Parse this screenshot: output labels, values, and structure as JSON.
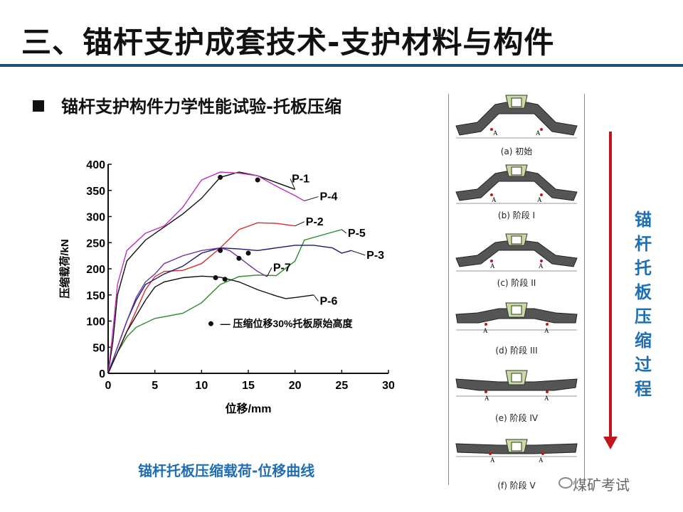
{
  "header": {
    "title": "三、锚杆支护成套技术-支护材料与构件"
  },
  "section": {
    "subtitle": "锚杆支护构件力学性能试验-托板压缩"
  },
  "caption": "锚杆托板压缩载荷-位移曲线",
  "process_label": "锚杆托板压缩过程",
  "watermark": "煤矿考试",
  "stages": [
    {
      "label": "(a) 初始"
    },
    {
      "label": "(b) 阶段 I"
    },
    {
      "label": "(c) 阶段 II"
    },
    {
      "label": "(d) 阶段 III"
    },
    {
      "label": "(e) 阶段 IV"
    },
    {
      "label": "(f) 阶段 V"
    }
  ],
  "stage_point_label": "A",
  "colors": {
    "accent_blue": "#1f6fb2",
    "arrow_red": "#c0151d",
    "title_rule": "#1f4e79"
  },
  "chart_data": {
    "type": "line",
    "xlabel": "位移/mm",
    "ylabel": "压缩载荷/kN",
    "xlim": [
      0,
      30
    ],
    "ylim": [
      0,
      400
    ],
    "xticks": [
      0,
      5,
      10,
      15,
      20,
      25,
      30
    ],
    "yticks": [
      0,
      50,
      100,
      150,
      200,
      250,
      300,
      350,
      400
    ],
    "annotation": "— 压缩位移30%托板原始高度",
    "series": [
      {
        "name": "P-1",
        "color": "#111111",
        "points": [
          [
            0,
            0
          ],
          [
            0.5,
            60
          ],
          [
            1,
            150
          ],
          [
            2,
            215
          ],
          [
            4,
            255
          ],
          [
            6,
            280
          ],
          [
            8,
            305
          ],
          [
            10,
            335
          ],
          [
            12,
            375
          ],
          [
            14,
            385
          ],
          [
            16,
            378
          ],
          [
            18,
            365
          ],
          [
            20,
            352
          ]
        ]
      },
      {
        "name": "P-4",
        "color": "#c030c0",
        "points": [
          [
            0,
            0
          ],
          [
            0.5,
            80
          ],
          [
            1,
            170
          ],
          [
            2,
            235
          ],
          [
            4,
            268
          ],
          [
            6,
            282
          ],
          [
            8,
            318
          ],
          [
            10,
            370
          ],
          [
            12,
            385
          ],
          [
            14,
            383
          ],
          [
            16,
            378
          ],
          [
            18,
            358
          ],
          [
            20,
            340
          ],
          [
            21,
            330
          ]
        ]
      },
      {
        "name": "P-2",
        "color": "#d43030",
        "points": [
          [
            0,
            0
          ],
          [
            1,
            40
          ],
          [
            2,
            80
          ],
          [
            3,
            120
          ],
          [
            4,
            160
          ],
          [
            5,
            185
          ],
          [
            6,
            195
          ],
          [
            8,
            197
          ],
          [
            10,
            210
          ],
          [
            12,
            240
          ],
          [
            14,
            275
          ],
          [
            16,
            288
          ],
          [
            18,
            287
          ],
          [
            20,
            282
          ]
        ]
      },
      {
        "name": "P-5",
        "color": "#2e8b2e",
        "points": [
          [
            0,
            0
          ],
          [
            1,
            40
          ],
          [
            2,
            70
          ],
          [
            3,
            88
          ],
          [
            5,
            105
          ],
          [
            8,
            115
          ],
          [
            10,
            135
          ],
          [
            12,
            170
          ],
          [
            14,
            185
          ],
          [
            16,
            188
          ],
          [
            18,
            187
          ],
          [
            20,
            215
          ],
          [
            21,
            255
          ],
          [
            24,
            270
          ],
          [
            25,
            275
          ]
        ]
      },
      {
        "name": "P-3",
        "color": "#1a1a6e",
        "points": [
          [
            0,
            0
          ],
          [
            1,
            50
          ],
          [
            2,
            100
          ],
          [
            3,
            140
          ],
          [
            4,
            170
          ],
          [
            5,
            180
          ],
          [
            6,
            190
          ],
          [
            8,
            205
          ],
          [
            10,
            230
          ],
          [
            12,
            240
          ],
          [
            14,
            238
          ],
          [
            16,
            235
          ],
          [
            18,
            240
          ],
          [
            20,
            245
          ],
          [
            22,
            245
          ],
          [
            24,
            240
          ],
          [
            25,
            230
          ],
          [
            26,
            235
          ]
        ]
      },
      {
        "name": "P-7",
        "color": "#7030a0",
        "points": [
          [
            0,
            0
          ],
          [
            1,
            50
          ],
          [
            2,
            100
          ],
          [
            3,
            145
          ],
          [
            4,
            175
          ],
          [
            5,
            190
          ],
          [
            6,
            210
          ],
          [
            8,
            225
          ],
          [
            10,
            235
          ],
          [
            12,
            240
          ],
          [
            13,
            235
          ],
          [
            14,
            222
          ],
          [
            15,
            208
          ],
          [
            16,
            195
          ],
          [
            17,
            185
          ]
        ]
      },
      {
        "name": "P-6",
        "color": "#111111",
        "points": [
          [
            0,
            0
          ],
          [
            1,
            40
          ],
          [
            2,
            80
          ],
          [
            4,
            140
          ],
          [
            5,
            165
          ],
          [
            6,
            175
          ],
          [
            8,
            183
          ],
          [
            10,
            186
          ],
          [
            12,
            184
          ],
          [
            14,
            175
          ],
          [
            16,
            160
          ],
          [
            18,
            148
          ],
          [
            19,
            143
          ],
          [
            20,
            145
          ],
          [
            22,
            150
          ]
        ]
      }
    ],
    "markers": [
      [
        12,
        375
      ],
      [
        16,
        370
      ],
      [
        12,
        235
      ],
      [
        15,
        230
      ],
      [
        14,
        220
      ],
      [
        11.5,
        183
      ],
      [
        12.5,
        180
      ],
      [
        11,
        95
      ]
    ]
  }
}
